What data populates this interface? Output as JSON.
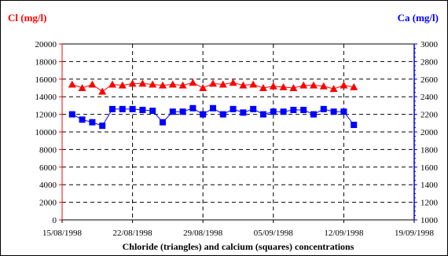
{
  "chart_data": {
    "type": "scatter",
    "caption": "Chloride (triangles) and calcium (squares) concentrations",
    "x_axis": {
      "type": "date",
      "ticks": [
        "15/08/1998",
        "22/08/1998",
        "29/08/1998",
        "05/09/1998",
        "12/09/1998",
        "19/09/1998"
      ],
      "range": [
        "1998-08-15",
        "1998-09-19"
      ]
    },
    "y_left": {
      "label": "Cl (mg/l)",
      "min": 0,
      "max": 20000,
      "step": 2000,
      "ticks": [
        "0",
        "2000",
        "4000",
        "6000",
        "8000",
        "10000",
        "12000",
        "14000",
        "16000",
        "18000",
        "20000"
      ],
      "color": "#ff0000"
    },
    "y_right": {
      "label": "Ca (mg/l)",
      "min": 1000,
      "max": 3000,
      "step": 200,
      "ticks": [
        "1000",
        "1200",
        "1400",
        "1600",
        "1800",
        "2000",
        "2200",
        "2400",
        "2600",
        "2800",
        "3000"
      ],
      "color": "#0000ff"
    },
    "grid": true,
    "series": [
      {
        "axis": "left",
        "marker": "triangle",
        "color": "#ff0000",
        "x": [
          "1998-08-16",
          "1998-08-17",
          "1998-08-18",
          "1998-08-19",
          "1998-08-20",
          "1998-08-21",
          "1998-08-22",
          "1998-08-23",
          "1998-08-24",
          "1998-08-25",
          "1998-08-26",
          "1998-08-27",
          "1998-08-28",
          "1998-08-29",
          "1998-08-30",
          "1998-08-31",
          "1998-09-01",
          "1998-09-02",
          "1998-09-03",
          "1998-09-04",
          "1998-09-05",
          "1998-09-06",
          "1998-09-07",
          "1998-09-08",
          "1998-09-09",
          "1998-09-10",
          "1998-09-11",
          "1998-09-12",
          "1998-09-13"
        ],
        "y": [
          15400,
          15000,
          15400,
          14600,
          15400,
          15300,
          15500,
          15500,
          15400,
          15300,
          15400,
          15300,
          15600,
          15000,
          15500,
          15400,
          15600,
          15300,
          15400,
          15000,
          15200,
          15100,
          15000,
          15300,
          15300,
          15200,
          14900,
          15300,
          15100
        ]
      },
      {
        "axis": "right",
        "marker": "square",
        "color": "#0000ff",
        "x": [
          "1998-08-16",
          "1998-08-17",
          "1998-08-18",
          "1998-08-19",
          "1998-08-20",
          "1998-08-21",
          "1998-08-22",
          "1998-08-23",
          "1998-08-24",
          "1998-08-25",
          "1998-08-26",
          "1998-08-27",
          "1998-08-28",
          "1998-08-29",
          "1998-08-30",
          "1998-08-31",
          "1998-09-01",
          "1998-09-02",
          "1998-09-03",
          "1998-09-04",
          "1998-09-05",
          "1998-09-06",
          "1998-09-07",
          "1998-09-08",
          "1998-09-09",
          "1998-09-10",
          "1998-09-11",
          "1998-09-12",
          "1998-09-13"
        ],
        "y": [
          2200,
          2140,
          2110,
          2070,
          2260,
          2260,
          2260,
          2250,
          2240,
          2110,
          2230,
          2230,
          2270,
          2200,
          2270,
          2200,
          2260,
          2220,
          2260,
          2200,
          2230,
          2230,
          2250,
          2250,
          2200,
          2260,
          2230,
          2230,
          2080
        ]
      }
    ]
  }
}
